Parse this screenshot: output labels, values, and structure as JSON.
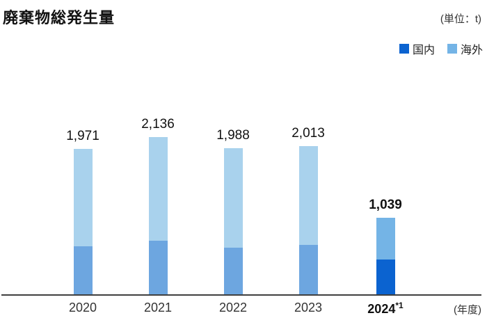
{
  "header": {
    "title": "廃棄物総発生量",
    "unit": "(単位：t)"
  },
  "legend": {
    "items": [
      {
        "label": "国内",
        "color": "#0b63d0"
      },
      {
        "label": "海外",
        "color": "#74b4e6"
      }
    ]
  },
  "footer": {
    "axis_label": "(年度)"
  },
  "chart_data": {
    "type": "bar",
    "stacked": true,
    "title": "廃棄物総発生量",
    "unit": "t",
    "xlabel": "年度",
    "categories": [
      "2020",
      "2021",
      "2022",
      "2023",
      "2024"
    ],
    "category_suffixes": [
      "",
      "",
      "",
      "",
      "*1"
    ],
    "totals": [
      1971,
      2136,
      1988,
      2013,
      1039
    ],
    "total_labels": [
      "1,971",
      "2,136",
      "1,988",
      "2,013",
      "1,039"
    ],
    "series": [
      {
        "name": "国内",
        "values": [
          650,
          730,
          630,
          670,
          470
        ]
      },
      {
        "name": "海外",
        "values": [
          1321,
          1406,
          1358,
          1343,
          569
        ]
      }
    ],
    "segment_values_estimated_from_pixels": true,
    "highlight_category": "2024",
    "ylim": [
      0,
      2300
    ],
    "grid": false,
    "legend_position": "top-right",
    "colors": {
      "domestic_current": "#0b63d0",
      "overseas_current": "#74b4e6",
      "domestic_past": "#6da6e0",
      "overseas_past": "#a9d2ed",
      "axis": "#3f3f3f"
    }
  }
}
